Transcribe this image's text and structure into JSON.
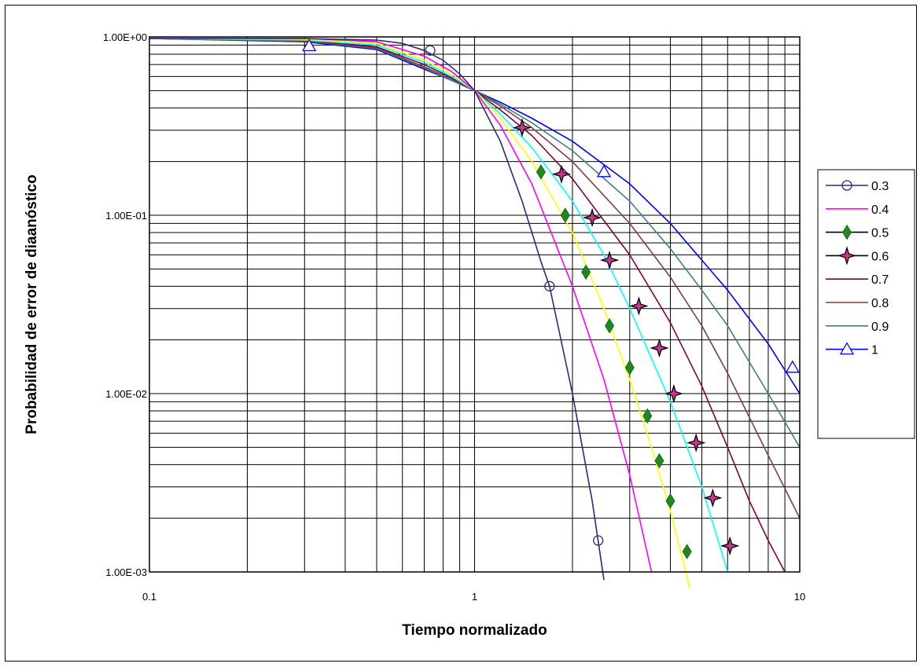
{
  "chart_data": {
    "type": "line",
    "title": "",
    "xlabel": "Tiempo normalizado",
    "ylabel": "Probabilidad de error de diaanóstico",
    "xscale": "log",
    "yscale": "log",
    "xlim": [
      0.1,
      10
    ],
    "ylim": [
      0.001,
      1
    ],
    "grid": true,
    "legend_position": "right",
    "x_tick_labels": [
      "0.1",
      "1",
      "10"
    ],
    "y_tick_labels": [
      "1.00E-03",
      "1.00E-02",
      "1.00E-01",
      "1.00E+00"
    ],
    "series": [
      {
        "name": "0.3",
        "color": "#2B2B7A",
        "marker": "circle",
        "x": [
          0.1,
          0.3,
          0.5,
          0.6,
          0.7,
          0.8,
          0.9,
          1.0,
          1.2,
          1.4,
          1.6,
          1.7,
          2.0,
          2.3,
          2.5
        ],
        "y": [
          0.98,
          0.98,
          0.96,
          0.92,
          0.84,
          0.74,
          0.62,
          0.5,
          0.26,
          0.12,
          0.055,
          0.04,
          0.01,
          0.0025,
          0.0009
        ],
        "marker_x": [
          0.73,
          1.7,
          2.4
        ],
        "marker_y": [
          0.84,
          0.04,
          0.0015
        ]
      },
      {
        "name": "0.4",
        "color": "#FF00FF",
        "marker": "none",
        "x": [
          0.1,
          0.3,
          0.5,
          0.7,
          0.85,
          1.0,
          1.2,
          1.5,
          2.0,
          2.5,
          3.0,
          3.5
        ],
        "y": [
          0.98,
          0.98,
          0.94,
          0.78,
          0.64,
          0.5,
          0.32,
          0.15,
          0.04,
          0.012,
          0.0035,
          0.001
        ]
      },
      {
        "name": "0.5",
        "color": "#FFFF00",
        "marker": "diamond",
        "x": [
          0.1,
          0.3,
          0.5,
          0.7,
          0.85,
          1.0,
          1.2,
          1.5,
          2.0,
          2.5,
          3.0,
          3.5,
          4.0,
          4.6
        ],
        "y": [
          0.98,
          0.97,
          0.92,
          0.74,
          0.62,
          0.5,
          0.35,
          0.2,
          0.08,
          0.03,
          0.012,
          0.005,
          0.0022,
          0.0008
        ],
        "marker_x": [
          1.6,
          1.9,
          2.2,
          2.6,
          3.0,
          3.4,
          3.7,
          4.0,
          4.5
        ],
        "marker_y": [
          0.175,
          0.1,
          0.048,
          0.024,
          0.014,
          0.0075,
          0.0042,
          0.0025,
          0.0013
        ]
      },
      {
        "name": "0.6",
        "color": "#00FFFF",
        "marker": "star",
        "x": [
          0.1,
          0.3,
          0.5,
          0.7,
          0.85,
          1.0,
          1.2,
          1.5,
          2.0,
          2.5,
          3.0,
          4.0,
          5.0,
          6.0
        ],
        "y": [
          0.98,
          0.96,
          0.9,
          0.72,
          0.6,
          0.5,
          0.37,
          0.24,
          0.12,
          0.06,
          0.03,
          0.009,
          0.003,
          0.001
        ],
        "marker_x": [
          1.4,
          1.85,
          2.3,
          2.6,
          3.2,
          3.7,
          4.1,
          4.8,
          5.4,
          6.1
        ],
        "marker_y": [
          0.31,
          0.17,
          0.097,
          0.056,
          0.031,
          0.018,
          0.01,
          0.0053,
          0.0026,
          0.0014
        ]
      },
      {
        "name": "0.7",
        "color": "#800040",
        "marker": "none",
        "x": [
          0.1,
          0.3,
          0.5,
          0.7,
          0.85,
          1.0,
          1.2,
          1.5,
          2.0,
          3.0,
          4.0,
          5.0,
          6.0,
          7.0,
          8.0,
          9.0
        ],
        "y": [
          0.98,
          0.96,
          0.88,
          0.7,
          0.59,
          0.5,
          0.39,
          0.28,
          0.16,
          0.06,
          0.025,
          0.011,
          0.005,
          0.0025,
          0.0015,
          0.001
        ]
      },
      {
        "name": "0.8",
        "color": "#804040",
        "marker": "none",
        "x": [
          0.1,
          0.3,
          0.5,
          0.7,
          0.85,
          1.0,
          1.2,
          1.5,
          2.0,
          3.0,
          4.0,
          5.0,
          6.0,
          8.0,
          10.0
        ],
        "y": [
          0.98,
          0.95,
          0.87,
          0.68,
          0.58,
          0.5,
          0.41,
          0.31,
          0.2,
          0.09,
          0.045,
          0.024,
          0.013,
          0.0045,
          0.002
        ]
      },
      {
        "name": "0.9",
        "color": "#408080",
        "marker": "none",
        "x": [
          0.1,
          0.3,
          0.5,
          0.7,
          0.85,
          1.0,
          1.2,
          1.5,
          2.0,
          3.0,
          4.0,
          5.0,
          6.0,
          8.0,
          10.0
        ],
        "y": [
          0.98,
          0.95,
          0.86,
          0.67,
          0.57,
          0.5,
          0.42,
          0.33,
          0.23,
          0.12,
          0.065,
          0.038,
          0.024,
          0.01,
          0.005
        ]
      },
      {
        "name": "1",
        "color": "#0000FF",
        "marker": "triangle",
        "x": [
          0.1,
          0.3,
          0.5,
          0.7,
          0.85,
          1.0,
          1.2,
          1.5,
          2.0,
          3.0,
          4.0,
          5.0,
          6.0,
          8.0,
          10.0
        ],
        "y": [
          0.98,
          0.94,
          0.85,
          0.66,
          0.57,
          0.5,
          0.43,
          0.35,
          0.26,
          0.15,
          0.09,
          0.056,
          0.038,
          0.019,
          0.01
        ],
        "marker_x": [
          0.31,
          2.5,
          9.5
        ],
        "marker_y": [
          0.89,
          0.175,
          0.014
        ]
      }
    ]
  }
}
